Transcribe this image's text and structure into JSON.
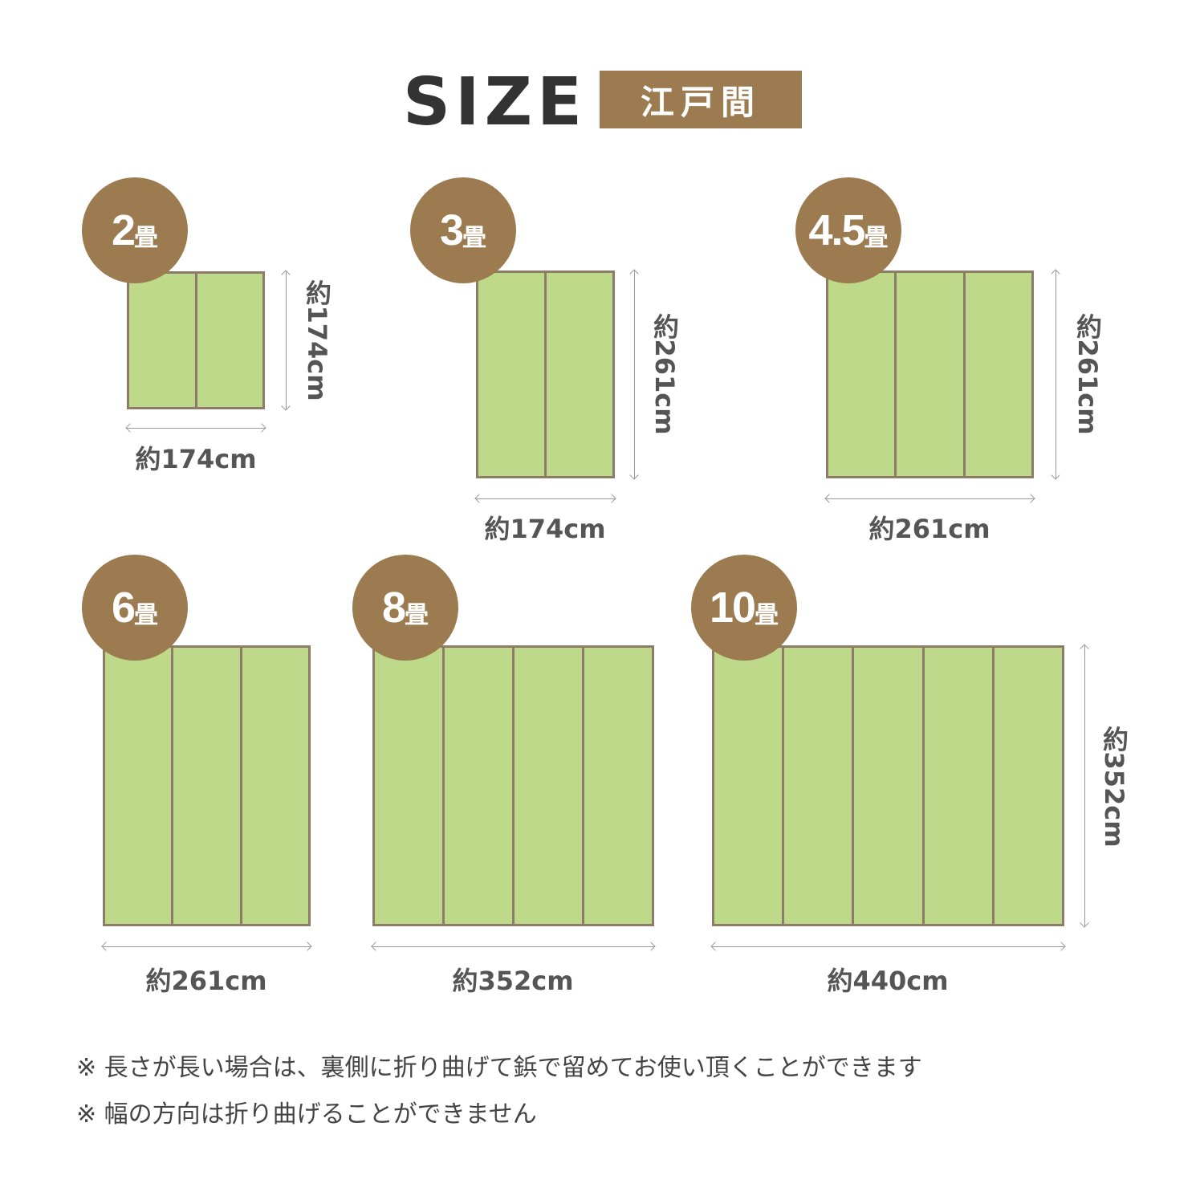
{
  "header": {
    "title": "SIZE",
    "badge": "江戸間"
  },
  "colors": {
    "brown": "#9b7b4f",
    "tatami_green": "#bfd98b",
    "border": "#8c7c68",
    "text": "#555555"
  },
  "sizes": [
    {
      "num": "2",
      "unit": "畳",
      "panels": 2,
      "width": "約174cm",
      "height": "約174cm"
    },
    {
      "num": "3",
      "unit": "畳",
      "panels": 2,
      "width": "約174cm",
      "height": "約261cm"
    },
    {
      "num": "4.5",
      "unit": "畳",
      "panels": 3,
      "width": "約261cm",
      "height": "約261cm"
    },
    {
      "num": "6",
      "unit": "畳",
      "panels": 3,
      "width": "約261cm"
    },
    {
      "num": "8",
      "unit": "畳",
      "panels": 4,
      "width": "約352cm"
    },
    {
      "num": "10",
      "unit": "畳",
      "panels": 5,
      "width": "約440cm",
      "height": "約352cm"
    }
  ],
  "notes": [
    "※ 長さが長い場合は、裏側に折り曲げて鋲で留めてお使い頂くことができます",
    "※ 幅の方向は折り曲げることができません"
  ]
}
